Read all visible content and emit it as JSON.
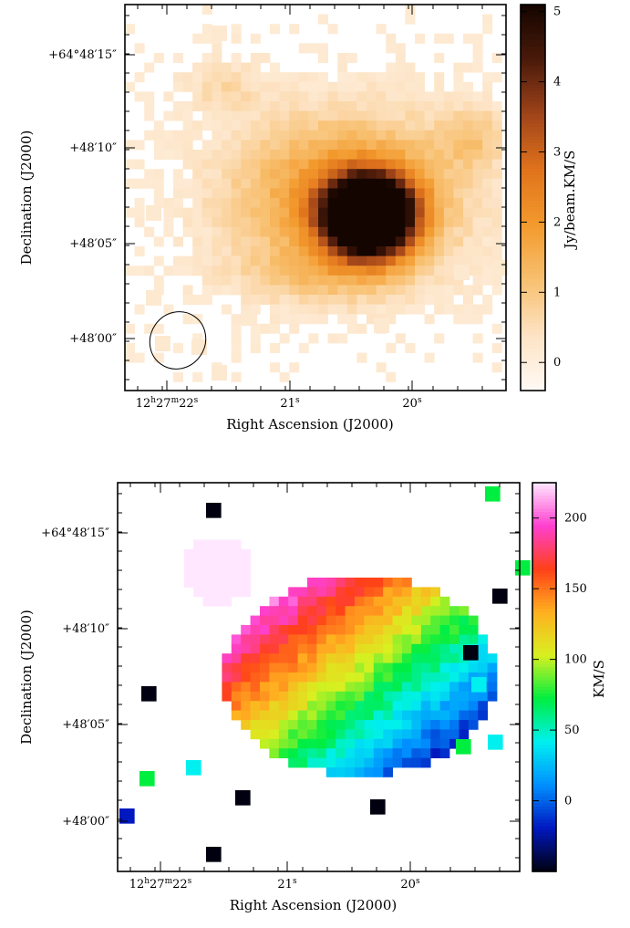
{
  "chart_data": [
    {
      "type": "heatmap",
      "title": "",
      "xlabel": "Right Ascension (J2000)",
      "ylabel": "Declination (J2000)",
      "x_tick_labels": [
        {
          "base": "12",
          "h": "h",
          "m_val": "27",
          "m": "m",
          "s_val": "22",
          "s": "s"
        },
        {
          "base": "21",
          "s": "s"
        },
        {
          "base": "20",
          "s": "s"
        }
      ],
      "y_tick_labels": [
        "+64°48′15″",
        "+48′10″",
        "+48′05″",
        "+48′00″"
      ],
      "colorbar": {
        "label": "Jy/beam.KM/S",
        "ticks": [
          "5",
          "4",
          "3",
          "2",
          "1",
          "0"
        ],
        "range": [
          -0.4,
          5.1
        ],
        "colors": [
          "#fffaf5",
          "#fde3c4",
          "#f8c070",
          "#f39a2d",
          "#e0731c",
          "#a0441a",
          "#4a1a0a",
          "#140500"
        ]
      },
      "beam": "ellipse"
    },
    {
      "type": "heatmap",
      "title": "",
      "xlabel": "Right Ascension (J2000)",
      "ylabel": "Declination (J2000)",
      "x_tick_labels": [
        {
          "base": "12",
          "h": "h",
          "m_val": "27",
          "m": "m",
          "s_val": "22",
          "s": "s"
        },
        {
          "base": "21",
          "s": "s"
        },
        {
          "base": "20",
          "s": "s"
        }
      ],
      "y_tick_labels": [
        "+64°48′15″",
        "+48′10″",
        "+48′05″",
        "+48′00″"
      ],
      "colorbar": {
        "label": "KM/S",
        "ticks": [
          "200",
          "150",
          "100",
          "50",
          "0"
        ],
        "range": [
          -50,
          225
        ],
        "colors": [
          "#000010",
          "#0018c0",
          "#0090ff",
          "#00f0f0",
          "#00ee40",
          "#d8f020",
          "#ffb020",
          "#ff4018",
          "#ff40d0",
          "#ffe8ff"
        ]
      }
    }
  ]
}
